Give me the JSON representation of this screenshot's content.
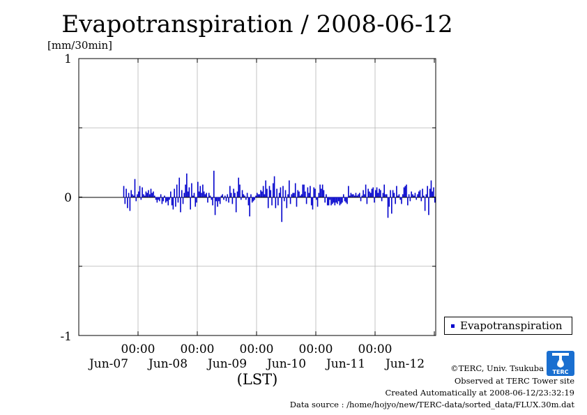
{
  "chart_data": {
    "type": "bar",
    "title": "Evapotranspiration / 2008-06-12",
    "ylabel": "[mm/30min]",
    "ylim": [
      -1,
      1
    ],
    "yticks": [
      "1",
      "0",
      "-1"
    ],
    "x_time_ticks": [
      "00:00",
      "00:00",
      "00:00",
      "00:00",
      "00:00"
    ],
    "x_date_labels": [
      "Jun-07",
      "Jun-08",
      "Jun-09",
      "Jun-10",
      "Jun-11",
      "Jun-12"
    ],
    "xlabel": "(LST)",
    "x_start": "2008-06-06 18:00",
    "interval_minutes": 30,
    "grid": true,
    "legend_position": "lower-right outside",
    "series": [
      {
        "name": "Evapotranspiration",
        "color": "#0000cc",
        "values": [
          0.08,
          -0.05,
          0.06,
          -0.08,
          0.03,
          -0.1,
          0.05,
          0.02,
          0.01,
          0.13,
          -0.03,
          0.02,
          0.04,
          0.08,
          -0.02,
          0.07,
          0.02,
          0.01,
          0.04,
          0.03,
          0.05,
          0.02,
          0.06,
          0.03,
          0.04,
          0.01,
          -0.02,
          -0.04,
          -0.02,
          -0.03,
          0.02,
          -0.05,
          -0.03,
          0.01,
          -0.04,
          -0.03,
          -0.06,
          -0.02,
          0.04,
          -0.06,
          -0.09,
          0.06,
          -0.07,
          0.09,
          -0.04,
          0.14,
          -0.11,
          0.05,
          -0.05,
          0.03,
          0.09,
          0.17,
          0.04,
          0.07,
          -0.09,
          0.1,
          0.01,
          0.03,
          -0.07,
          -0.04,
          0.11,
          0.04,
          0.08,
          0.03,
          0.09,
          0.04,
          0.02,
          0.03,
          -0.04,
          0.03,
          0.01,
          -0.02,
          -0.06,
          0.19,
          -0.13,
          -0.03,
          -0.07,
          -0.03,
          -0.05,
          0.01,
          0.02,
          -0.02,
          0.01,
          -0.03,
          0.02,
          -0.04,
          0.08,
          0.03,
          -0.05,
          0.06,
          0.03,
          -0.11,
          0.04,
          0.14,
          0.09,
          -0.02,
          0.05,
          0.02,
          0.01,
          -0.02,
          0.03,
          -0.06,
          -0.14,
          0.02,
          -0.04,
          -0.03,
          -0.02,
          0.01,
          0.03,
          0.02,
          0.02,
          0.05,
          0.04,
          0.08,
          0.02,
          0.12,
          0.06,
          -0.08,
          0.08,
          0.05,
          -0.06,
          0.1,
          0.15,
          -0.08,
          0.06,
          -0.06,
          0.03,
          0.07,
          -0.18,
          0.08,
          -0.03,
          0.05,
          -0.08,
          0.02,
          0.12,
          -0.05,
          0.02,
          0.03,
          0.03,
          0.1,
          -0.07,
          0.05,
          0.04,
          0.01,
          0.02,
          0.09,
          0.09,
          0.04,
          -0.05,
          0.07,
          0.03,
          0.08,
          -0.06,
          -0.09,
          0.07,
          0.06,
          -0.02,
          -0.07,
          0.03,
          0.09,
          0.06,
          0.09,
          0.05,
          -0.04,
          0.02,
          -0.06,
          -0.06,
          -0.02,
          -0.06,
          -0.05,
          -0.04,
          -0.06,
          -0.04,
          -0.05,
          -0.03,
          -0.06,
          -0.05,
          -0.04,
          0.02,
          -0.03,
          -0.04,
          -0.05,
          0.08,
          0.01,
          0.03,
          0.02,
          0.02,
          0.01,
          0.03,
          0.01,
          0.02,
          0.03,
          -0.03,
          0.01,
          0.05,
          0.02,
          0.09,
          -0.05,
          0.06,
          0.04,
          0.03,
          0.06,
          0.07,
          -0.04,
          0.05,
          0.07,
          0.03,
          0.06,
          0.05,
          -0.03,
          0.03,
          0.09,
          0.02,
          0.02,
          -0.15,
          -0.07,
          0.05,
          -0.12,
          0.05,
          0.03,
          -0.05,
          0.08,
          0.01,
          0.02,
          -0.02,
          -0.05,
          0.02,
          0.07,
          0.08,
          0.09,
          -0.06,
          0.02,
          -0.03,
          0.04,
          0.02,
          0.01,
          0.03,
          -0.02,
          0.02,
          0.04,
          0.05,
          -0.03,
          0.06,
          0.01,
          -0.1,
          0.02,
          0.08,
          -0.13,
          0.06,
          0.12,
          0.04,
          0.07,
          -0.04,
          -0.06,
          -0.05,
          -0.03,
          -0.04,
          -0.01,
          -0.02,
          0.03,
          0.01,
          0.02,
          0.01
        ]
      }
    ]
  },
  "footer": {
    "copyright": "©TERC, Univ. Tsukuba",
    "site": "Observed at TERC Tower site",
    "created": "Created Automatically at 2008-06-12/23:32:19",
    "source": "Data source : /home/hojyo/new/TERC-data/sorted_data/FLUX.30m.dat"
  },
  "logo": {
    "icon": "terc-logo-icon",
    "text": "TERC",
    "color": "#1a6fd0"
  }
}
